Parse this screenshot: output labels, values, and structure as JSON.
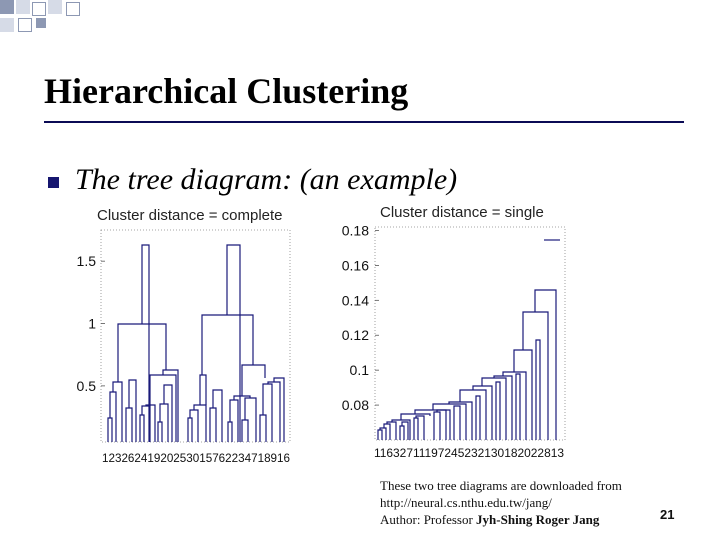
{
  "slide": {
    "title": "Hierarchical Clustering",
    "bullet_text": "The tree diagram: (an example)",
    "credit_line1": "These two tree diagrams are downloaded from",
    "credit_line2": "http://neural.cs.nthu.edu.tw/jang/",
    "credit_line3_prefix": "Author: Professor ",
    "credit_line3_name": "Jyh-Shing Roger Jang",
    "page_number": "21"
  },
  "colors": {
    "accent": "#16166f",
    "line": "#1a1a7a",
    "deco_dark": "#8d98b3",
    "deco_light": "#d6dbe7"
  },
  "chart_data": [
    {
      "type": "dendrogram",
      "title": "Cluster distance = complete",
      "yticks": [
        {
          "value": 0.5,
          "label": "0.5"
        },
        {
          "value": 1,
          "label": "1"
        },
        {
          "value": 1.5,
          "label": "1.5"
        }
      ],
      "ylim": [
        0.05,
        1.75
      ],
      "leaf_labels_text": "12326241920253015762234718916",
      "grid": false
    },
    {
      "type": "dendrogram",
      "title": "Cluster distance = single",
      "yticks": [
        {
          "value": 0.08,
          "label": "0.08"
        },
        {
          "value": 0.1,
          "label": "0.1"
        },
        {
          "value": 0.12,
          "label": "0.12"
        },
        {
          "value": 0.14,
          "label": "0.14"
        },
        {
          "value": 0.16,
          "label": "0.16"
        },
        {
          "value": 0.18,
          "label": "0.18"
        }
      ],
      "ylim": [
        0.06,
        0.182
      ],
      "leaf_labels_text": "11632711197245232130182022813",
      "grid": false
    }
  ]
}
